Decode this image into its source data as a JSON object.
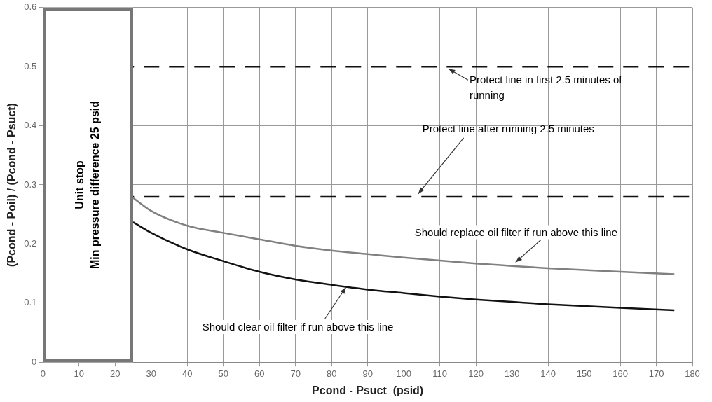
{
  "chart_data": {
    "type": "line",
    "xlabel": "Pcond - Psuct  (psid)",
    "ylabel": "(Pcond - Poil) / (Pcond - Psuct)",
    "xlim": [
      0,
      180
    ],
    "xticks": [
      0,
      10,
      20,
      30,
      40,
      50,
      60,
      70,
      80,
      90,
      100,
      110,
      120,
      130,
      140,
      150,
      160,
      170,
      180
    ],
    "ylim": [
      0,
      0.6
    ],
    "yticks": [
      0,
      0.1,
      0.2,
      0.3,
      0.4,
      0.5,
      0.6
    ],
    "grid": true,
    "legend": false,
    "marker": "none",
    "line_style": "solid",
    "series": [
      {
        "color": "#808080",
        "x": [
          25,
          30,
          40,
          50,
          60,
          70,
          80,
          90,
          100,
          110,
          120,
          130,
          140,
          150,
          160,
          175
        ],
        "values": [
          0.278,
          0.256,
          0.231,
          0.219,
          0.208,
          0.197,
          0.189,
          0.183,
          0.177,
          0.172,
          0.167,
          0.163,
          0.159,
          0.156,
          0.153,
          0.149
        ]
      },
      {
        "color": "#111111",
        "x": [
          25,
          30,
          40,
          50,
          60,
          70,
          80,
          90,
          100,
          110,
          120,
          130,
          140,
          150,
          160,
          175
        ],
        "values": [
          0.237,
          0.219,
          0.191,
          0.171,
          0.153,
          0.14,
          0.131,
          0.123,
          0.117,
          0.111,
          0.106,
          0.102,
          0.098,
          0.095,
          0.092,
          0.088
        ]
      }
    ],
    "ref_lines": [
      {
        "axis": "y",
        "value": 0.5,
        "label": "Protect line in first 2.5 minutes of running",
        "line_style": "dashed",
        "color": "#111111"
      },
      {
        "axis": "y",
        "value": 0.28,
        "label": "Protect line after running 2.5 minutes",
        "line_style": "dashed",
        "color": "#111111"
      }
    ],
    "bands": [
      {
        "axis": "x",
        "from": 0,
        "to": 25,
        "label": "Unit stop\nMin pressure difference 25 psid",
        "color": "#ffffff"
      }
    ],
    "annotations": [
      {
        "text": "Should replace oil filter if run above this line",
        "x": 131,
        "y": 0.169
      },
      {
        "text": "Should clear oil filter if run above this line",
        "x": 84,
        "y": 0.127
      }
    ]
  }
}
